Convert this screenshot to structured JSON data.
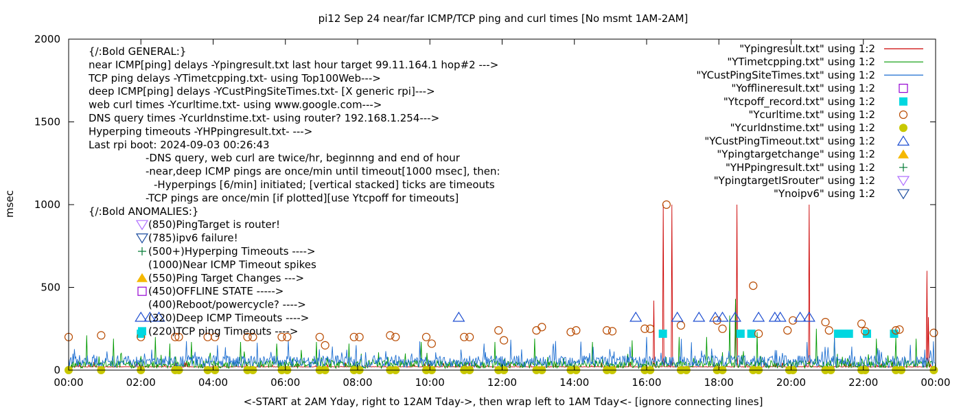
{
  "chart_data": {
    "type": "line",
    "title": "pi12 Sep 24  near/far ICMP/TCP ping and curl times [No msmt 1AM-2AM]",
    "xlabel": "<-START at 2AM Yday, right to 12AM Tday->, then wrap left to 1AM Tday<- [ignore connecting lines]",
    "ylabel": "msec",
    "xlim": [
      0,
      24
    ],
    "ylim": [
      0,
      2000
    ],
    "x_ticks": [
      "00:00",
      "02:00",
      "04:00",
      "06:00",
      "08:00",
      "10:00",
      "12:00",
      "14:00",
      "16:00",
      "18:00",
      "20:00",
      "22:00",
      "00:00"
    ],
    "y_ticks": [
      "0",
      "500",
      "1000",
      "1500",
      "2000"
    ],
    "grid": false,
    "legend_position": "top-right",
    "annotations": [
      "{/:Bold GENERAL:}",
      "near ICMP[ping] delays -Ypingresult.txt last hour target 99.11.164.1 hop#2 --->",
      "TCP ping delays -YTimetcpping.txt- using Top100Web--->",
      "deep ICMP[ping] delays -YCustPingSiteTimes.txt- [X generic rpi]--->",
      "web curl times -Ycurltime.txt- using www.google.com--->",
      "DNS query times -Ycurldnstime.txt- using router? 192.168.1.254--->",
      "Hyperping timeouts -YHPpingresult.txt- --->",
      "Last rpi boot: 2024-09-03 00:26:43",
      "-DNS query, web curl are twice/hr, beginnng and end of hour",
      "-near,deep ICMP pings are once/min until timeout[1000 msec], then:",
      "-Hyperpings [6/min] initiated; [vertical stacked] ticks are timeouts",
      "-TCP pings are once/min [if plotted][use Ytcpoff for timeouts]",
      "{/:Bold ANOMALIES:}",
      "(850)PingTarget is router!",
      "(785)ipv6 failure!",
      "(500+)Hyperping Timeouts ---->",
      "(1000)Near ICMP Timeout spikes",
      "(550)Ping Target Changes --->",
      "(450)OFFLINE STATE ----->",
      "(400)Reboot/powercycle? ---->",
      "(320)Deep ICMP Timeouts ---->",
      "(220)TCP ping Timeouts ---->"
    ],
    "legend": [
      {
        "label": "\"Ypingresult.txt\" using 1:2",
        "kind": "line",
        "color": "#cc0000"
      },
      {
        "label": "\"YTimetcpping.txt\" using 1:2",
        "kind": "line",
        "color": "#009900"
      },
      {
        "label": "\"YCustPingSiteTimes.txt\" using 1:2",
        "kind": "line",
        "color": "#1f6fd1"
      },
      {
        "label": "\"Yofflineresult.txt\" using 1:2",
        "kind": "square-open",
        "color": "#9400d3"
      },
      {
        "label": "\"Ytcpoff_record.txt\" using 1:2",
        "kind": "square-filled",
        "color": "#00d7e0"
      },
      {
        "label": "\"Ycurltime.txt\" using 1:2",
        "kind": "circle-open",
        "color": "#b84a00"
      },
      {
        "label": "\"Ycurldnstime.txt\" using 1:2",
        "kind": "circle-filled",
        "color": "#c8c800"
      },
      {
        "label": "\"YCustPingTimeout.txt\" using 1:2",
        "kind": "triangle-up-open",
        "color": "#1f4fd1"
      },
      {
        "label": "\"Ypingtargetchange\" using 1:2",
        "kind": "triangle-up-filled",
        "color": "#f5b800"
      },
      {
        "label": "\"YHPpingresult.txt\" using 1:2",
        "kind": "plus",
        "color": "#007a33"
      },
      {
        "label": "\"YpingtargetISrouter\" using 1:2",
        "kind": "triangle-down-open",
        "color": "#b070ff"
      },
      {
        "label": "\"Ynoipv6\" using 1:2",
        "kind": "triangle-down-open",
        "color": "#1f4fa0"
      }
    ],
    "anomaly_markers": [
      {
        "kind": "triangle-down-open",
        "color": "#b070ff"
      },
      {
        "kind": "triangle-down-open",
        "color": "#1f4fa0"
      },
      {
        "kind": "plus",
        "color": "#007a33"
      },
      {
        "kind": "none",
        "color": ""
      },
      {
        "kind": "triangle-up-filled",
        "color": "#f5b800"
      },
      {
        "kind": "square-open",
        "color": "#9400d3"
      },
      {
        "kind": "none",
        "color": ""
      },
      {
        "kind": "none",
        "color": ""
      },
      {
        "kind": "square-filled",
        "color": "#00d7e0"
      }
    ],
    "series": [
      {
        "name": "\"Ypingresult.txt\" using 1:2",
        "color": "#cc0000",
        "baseline": 20,
        "spikes": [
          [
            16.45,
            1000
          ],
          [
            16.7,
            1000
          ],
          [
            18.5,
            1000
          ],
          [
            20.5,
            1000
          ],
          [
            23.75,
            600
          ],
          [
            23.8,
            320
          ],
          [
            16.2,
            420
          ],
          [
            18.45,
            430
          ]
        ]
      },
      {
        "name": "\"YTimetcpping.txt\" using 1:2",
        "color": "#009900",
        "baseline": 30,
        "spikes": [
          [
            0.5,
            210
          ],
          [
            1.25,
            190
          ],
          [
            2.4,
            200
          ],
          [
            2.8,
            160
          ],
          [
            3.4,
            170
          ],
          [
            4.75,
            170
          ],
          [
            5.75,
            160
          ],
          [
            6.85,
            170
          ],
          [
            7.75,
            160
          ],
          [
            9.75,
            170
          ],
          [
            11.8,
            170
          ],
          [
            12.9,
            190
          ],
          [
            14.5,
            170
          ],
          [
            15.6,
            180
          ],
          [
            16.9,
            200
          ],
          [
            17.65,
            200
          ],
          [
            18.3,
            330
          ],
          [
            18.45,
            430
          ],
          [
            19.05,
            230
          ],
          [
            20.7,
            250
          ],
          [
            21.2,
            200
          ],
          [
            22.35,
            190
          ],
          [
            22.9,
            200
          ],
          [
            23.45,
            190
          ]
        ]
      },
      {
        "name": "\"YCustPingSiteTimes.txt\" using 1:2",
        "color": "#1f6fd1",
        "baseline": 45,
        "spikes": [
          [
            0.3,
            90
          ],
          [
            2.1,
            100
          ],
          [
            3.5,
            110
          ],
          [
            5.6,
            110
          ],
          [
            8.1,
            90
          ],
          [
            9.5,
            100
          ],
          [
            11.5,
            160
          ],
          [
            13.4,
            130
          ],
          [
            16.0,
            200
          ],
          [
            17.8,
            130
          ],
          [
            19.6,
            120
          ],
          [
            21.2,
            200
          ],
          [
            22.5,
            110
          ]
        ]
      },
      {
        "name": "\"Ytcpoff_record.txt\" using 1:2",
        "kind": "square-filled",
        "color": "#00d7e0",
        "points": [
          [
            2.0,
            220
          ],
          [
            16.45,
            220
          ],
          [
            18.6,
            220
          ],
          [
            18.9,
            220
          ],
          [
            21.3,
            220
          ],
          [
            21.45,
            220
          ],
          [
            21.6,
            220
          ],
          [
            22.1,
            220
          ],
          [
            22.85,
            220
          ]
        ]
      },
      {
        "name": "\"Ycurltime.txt\" using 1:2",
        "kind": "circle-open",
        "color": "#b84a00",
        "points": [
          [
            0.0,
            200
          ],
          [
            0.9,
            210
          ],
          [
            2.0,
            200
          ],
          [
            2.95,
            200
          ],
          [
            3.05,
            200
          ],
          [
            3.85,
            200
          ],
          [
            4.05,
            200
          ],
          [
            4.95,
            200
          ],
          [
            5.1,
            200
          ],
          [
            5.9,
            200
          ],
          [
            6.05,
            200
          ],
          [
            6.95,
            200
          ],
          [
            7.1,
            150
          ],
          [
            7.9,
            200
          ],
          [
            8.05,
            200
          ],
          [
            8.9,
            210
          ],
          [
            9.05,
            200
          ],
          [
            9.9,
            200
          ],
          [
            10.05,
            160
          ],
          [
            10.95,
            200
          ],
          [
            11.1,
            200
          ],
          [
            11.9,
            240
          ],
          [
            12.05,
            180
          ],
          [
            12.95,
            240
          ],
          [
            13.1,
            260
          ],
          [
            13.9,
            230
          ],
          [
            14.05,
            240
          ],
          [
            14.9,
            240
          ],
          [
            15.05,
            235
          ],
          [
            15.95,
            250
          ],
          [
            16.1,
            250
          ],
          [
            16.55,
            1000
          ],
          [
            16.95,
            270
          ],
          [
            17.95,
            300
          ],
          [
            18.1,
            250
          ],
          [
            18.95,
            510
          ],
          [
            19.1,
            220
          ],
          [
            19.9,
            240
          ],
          [
            20.05,
            300
          ],
          [
            20.95,
            290
          ],
          [
            21.05,
            240
          ],
          [
            21.95,
            280
          ],
          [
            22.05,
            235
          ],
          [
            22.9,
            240
          ],
          [
            23.0,
            245
          ],
          [
            23.95,
            225
          ]
        ]
      },
      {
        "name": "\"Ycurldnstime.txt\" using 1:2",
        "kind": "circle-filled",
        "color": "#c8c800",
        "points": [
          [
            0.0,
            0
          ],
          [
            0.9,
            0
          ],
          [
            2.0,
            0
          ],
          [
            2.95,
            0
          ],
          [
            3.05,
            0
          ],
          [
            3.85,
            0
          ],
          [
            4.05,
            0
          ],
          [
            4.95,
            0
          ],
          [
            5.1,
            0
          ],
          [
            5.9,
            0
          ],
          [
            6.05,
            0
          ],
          [
            6.95,
            0
          ],
          [
            7.1,
            0
          ],
          [
            7.9,
            0
          ],
          [
            8.05,
            0
          ],
          [
            8.9,
            0
          ],
          [
            9.05,
            0
          ],
          [
            9.9,
            0
          ],
          [
            10.05,
            0
          ],
          [
            10.95,
            0
          ],
          [
            11.1,
            0
          ],
          [
            11.9,
            0
          ],
          [
            12.05,
            0
          ],
          [
            12.95,
            0
          ],
          [
            13.1,
            0
          ],
          [
            13.9,
            0
          ],
          [
            14.05,
            0
          ],
          [
            14.9,
            0
          ],
          [
            15.05,
            0
          ],
          [
            15.95,
            0
          ],
          [
            16.1,
            0
          ],
          [
            16.95,
            0
          ],
          [
            17.1,
            0
          ],
          [
            17.95,
            0
          ],
          [
            18.1,
            0
          ],
          [
            18.95,
            0
          ],
          [
            19.1,
            0
          ],
          [
            19.95,
            0
          ],
          [
            20.05,
            0
          ],
          [
            20.95,
            0
          ],
          [
            21.1,
            0
          ],
          [
            21.95,
            0
          ],
          [
            22.05,
            0
          ],
          [
            22.9,
            0
          ],
          [
            23.05,
            0
          ],
          [
            23.95,
            0
          ]
        ]
      },
      {
        "name": "\"YCustPingTimeout.txt\" using 1:2",
        "kind": "triangle-up-open",
        "color": "#1f4fd1",
        "points": [
          [
            2.0,
            320
          ],
          [
            2.25,
            320
          ],
          [
            2.5,
            320
          ],
          [
            10.8,
            320
          ],
          [
            15.7,
            320
          ],
          [
            16.85,
            320
          ],
          [
            17.45,
            320
          ],
          [
            17.9,
            320
          ],
          [
            18.1,
            320
          ],
          [
            18.45,
            320
          ],
          [
            19.1,
            320
          ],
          [
            19.55,
            320
          ],
          [
            19.7,
            320
          ],
          [
            20.25,
            320
          ],
          [
            20.5,
            320
          ]
        ]
      }
    ]
  }
}
